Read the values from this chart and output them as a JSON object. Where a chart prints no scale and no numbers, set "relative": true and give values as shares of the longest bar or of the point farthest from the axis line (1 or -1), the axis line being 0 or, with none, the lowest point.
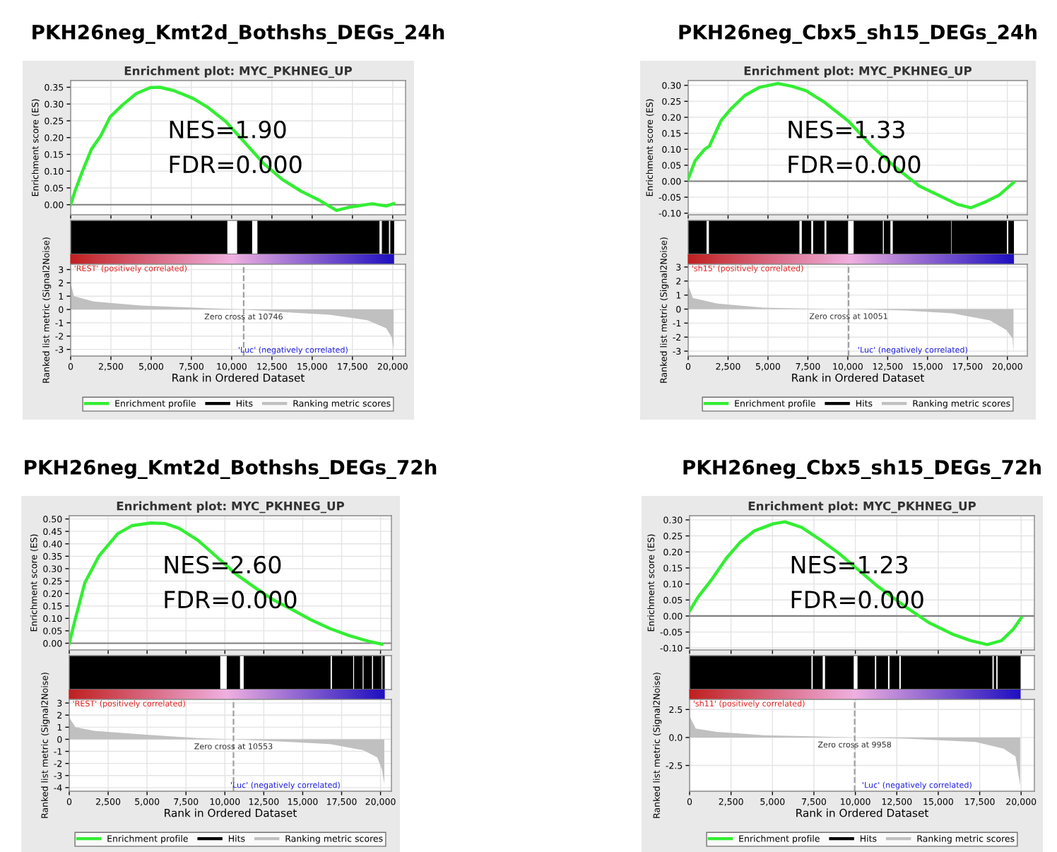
{
  "chart_data": [
    {
      "type": "line",
      "title": "PKH26neg_Kmt2d_Bothshs_DEGs_24h",
      "subtitle": "Enrichment plot: MYC_PKHNEG_UP",
      "ylabel": "Enrichment score (ES)",
      "annotations": [
        "NES=1.90",
        "FDR=0.000"
      ],
      "series": [
        {
          "name": "Enrichment profile",
          "color": "#33ee33",
          "x": [
            0,
            264,
            703,
            1288,
            1874,
            2460,
            3192,
            4070,
            4949,
            5534,
            6413,
            7584,
            8463,
            9634,
            10805,
            11977,
            13148,
            14319,
            15490,
            16515,
            17247,
            18711,
            19590,
            20059
          ],
          "values": [
            0.0,
            0.04,
            0.096,
            0.165,
            0.206,
            0.262,
            0.296,
            0.331,
            0.349,
            0.35,
            0.34,
            0.317,
            0.292,
            0.248,
            0.186,
            0.123,
            0.075,
            0.04,
            0.012,
            -0.017,
            -0.008,
            0.003,
            -0.004,
            0.003
          ]
        }
      ],
      "ref_lines": [
        {
          "axis": "y",
          "value": 0,
          "color": "#808080"
        }
      ],
      "xlim": [
        0,
        20800
      ],
      "xticks": [
        0,
        2500,
        5000,
        7500,
        10000,
        12500,
        15000,
        17500,
        20000
      ],
      "ylim": [
        -0.03,
        0.37
      ],
      "yticks": [
        {
          "value": 0,
          "label": "0.00"
        },
        {
          "value": 0.05,
          "label": "0.05"
        },
        {
          "value": 0.1,
          "label": "0.10"
        },
        {
          "value": 0.15,
          "label": "0.15"
        },
        {
          "value": 0.2,
          "label": "0.20"
        },
        {
          "value": 0.25,
          "label": "0.25"
        },
        {
          "value": 0.3,
          "label": "0.30"
        },
        {
          "value": 0.35,
          "label": "0.35"
        }
      ],
      "grid": true,
      "tick_labels": "y"
    },
    {
      "type": "step",
      "relative": true,
      "tick_labels": false,
      "xlim": [
        0,
        20800
      ],
      "series": [
        {
          "name": "Hits",
          "color": "#000000",
          "x": [
            0,
            9700,
            10370,
            11240,
            11630,
            14290,
            14350,
            19150,
            19360,
            19740,
            19880,
            20060
          ],
          "values": [
            1,
            0,
            1,
            0,
            1,
            0,
            1,
            0,
            1,
            0,
            1,
            0
          ]
        }
      ]
    },
    {
      "type": "area",
      "xlabel": "Rank in Ordered Dataset",
      "ylabel": "Ranked list metric (Signal2Noise)",
      "annotations": [
        "'REST' (positively correlated)",
        "'Luc' (negatively correlated)"
      ],
      "series": [
        {
          "name": "Ranking metric scores",
          "color": "#c0c0c0",
          "x": [
            0,
            205,
            1435,
            4363,
            8463,
            10746,
            13148,
            16076,
            18418,
            19590,
            19941,
            20059
          ],
          "values": [
            2.0,
            1.0,
            0.6,
            0.3,
            0.1,
            0,
            -0.2,
            -0.4,
            -0.8,
            -1.4,
            -2.1,
            -3.0
          ]
        }
      ],
      "ref_lines": [
        {
          "axis": "x",
          "value": 10746,
          "label": "Zero cross at 10746",
          "color": "#a0a0a0",
          "line_style": "dashed"
        }
      ],
      "xlim": [
        0,
        20800
      ],
      "xticks": [
        0,
        {
          "value": 2500,
          "label": "2,500"
        },
        {
          "value": 5000,
          "label": "5,000"
        },
        {
          "value": 7500,
          "label": "7,500"
        },
        {
          "value": 10000,
          "label": "10,000"
        },
        {
          "value": 12500,
          "label": "12,500"
        },
        {
          "value": 15000,
          "label": "15,000"
        },
        {
          "value": 17500,
          "label": "17,500"
        },
        {
          "value": 20000,
          "label": "20,000"
        }
      ],
      "ylim": [
        -3.5,
        3.4
      ],
      "yticks": [
        -3,
        -2,
        -1,
        0,
        1,
        2,
        3
      ],
      "grid": true,
      "legend": "bottom"
    },
    {
      "type": "line",
      "title": "PKH26neg_Cbx5_sh15_DEGs_24h",
      "subtitle": "Enrichment plot: MYC_PKHNEG_UP",
      "ylabel": "Enrichment score (ES)",
      "annotations": [
        "NES=1.33",
        "FDR=0.000"
      ],
      "series": [
        {
          "name": "Enrichment profile",
          "color": "#33ee33",
          "x": [
            0,
            443,
            1034,
            1329,
            2068,
            2659,
            3545,
            4431,
            5613,
            6500,
            7386,
            8567,
            10044,
            11521,
            12999,
            14476,
            15657,
            16839,
            17725,
            18611,
            19498,
            20384
          ],
          "values": [
            0.007,
            0.065,
            0.1,
            0.11,
            0.19,
            0.225,
            0.268,
            0.293,
            0.306,
            0.297,
            0.283,
            0.246,
            0.188,
            0.109,
            0.043,
            -0.015,
            -0.043,
            -0.072,
            -0.083,
            -0.065,
            -0.043,
            -0.004
          ]
        }
      ],
      "ref_lines": [
        {
          "axis": "y",
          "value": 0,
          "color": "#808080"
        }
      ],
      "xlim": [
        0,
        21250
      ],
      "xticks": [
        0,
        2500,
        5000,
        7500,
        10000,
        12500,
        15000,
        17500,
        20000
      ],
      "ylim": [
        -0.105,
        0.315
      ],
      "yticks": [
        {
          "value": -0.1,
          "label": "-0.10"
        },
        {
          "value": -0.05,
          "label": "-0.05"
        },
        {
          "value": 0,
          "label": "0.00"
        },
        {
          "value": 0.05,
          "label": "0.05"
        },
        {
          "value": 0.1,
          "label": "0.10"
        },
        {
          "value": 0.15,
          "label": "0.15"
        },
        {
          "value": 0.2,
          "label": "0.20"
        },
        {
          "value": 0.25,
          "label": "0.25"
        },
        {
          "value": 0.3,
          "label": "0.30"
        }
      ],
      "grid": true,
      "tick_labels": "y"
    },
    {
      "type": "step",
      "relative": true,
      "tick_labels": false,
      "xlim": [
        0,
        21250
      ],
      "series": [
        {
          "name": "Hits",
          "color": "#000000",
          "x": [
            0,
            1120,
            1330,
            6940,
            7150,
            7680,
            7860,
            8510,
            8690,
            9990,
            10400,
            12170,
            12290,
            12640,
            12850,
            16450,
            16540,
            19940,
            20090,
            20380
          ],
          "values": [
            1,
            0,
            1,
            0,
            1,
            0,
            1,
            0,
            1,
            0,
            1,
            0,
            1,
            0,
            1,
            0,
            1,
            0,
            1,
            0
          ]
        }
      ]
    },
    {
      "type": "area",
      "xlabel": "Rank in Ordered Dataset",
      "ylabel": "Ranked list metric (Signal2Noise)",
      "annotations": [
        "'sh15' (positively correlated)",
        "'Luc' (negatively correlated)"
      ],
      "series": [
        {
          "name": "Ranking metric scores",
          "color": "#c0c0c0",
          "x": [
            0,
            295,
            1772,
            4727,
            8863,
            10051,
            13589,
            16544,
            18907,
            19941,
            20325,
            20384
          ],
          "values": [
            1.7,
            0.8,
            0.4,
            0.1,
            0.0,
            0,
            -0.1,
            -0.3,
            -0.8,
            -1.5,
            -2.1,
            -3.1
          ]
        }
      ],
      "ref_lines": [
        {
          "axis": "x",
          "value": 10051,
          "label": "Zero cross at 10051",
          "color": "#a0a0a0",
          "line_style": "dashed"
        }
      ],
      "xlim": [
        0,
        21250
      ],
      "xticks": [
        0,
        {
          "value": 2500,
          "label": "2,500"
        },
        {
          "value": 5000,
          "label": "5,000"
        },
        {
          "value": 7500,
          "label": "7,500"
        },
        {
          "value": 10000,
          "label": "10,000"
        },
        {
          "value": 12500,
          "label": "12,500"
        },
        {
          "value": 15000,
          "label": "15,000"
        },
        {
          "value": 17500,
          "label": "17,500"
        },
        {
          "value": 20000,
          "label": "20,000"
        }
      ],
      "ylim": [
        -3.35,
        3.2
      ],
      "yticks": [
        -3,
        -2,
        -1,
        0,
        1,
        2,
        3
      ],
      "grid": true,
      "legend": "bottom"
    },
    {
      "type": "line",
      "title": "PKH26neg_Kmt2d_Bothshs_DEGs_72h",
      "subtitle": "Enrichment plot: MYC_PKHNEG_UP",
      "ylabel": "Enrichment score (ES)",
      "annotations": [
        "NES=2.60",
        "FDR=0.000"
      ],
      "series": [
        {
          "name": "Enrichment profile",
          "color": "#33ee33",
          "x": [
            0,
            394,
            1000,
            1909,
            3121,
            4030,
            5242,
            6152,
            7061,
            8273,
            9485,
            10697,
            11909,
            13121,
            14333,
            15545,
            16758,
            17970,
            19182,
            20091
          ],
          "values": [
            0.0,
            0.099,
            0.243,
            0.351,
            0.441,
            0.473,
            0.484,
            0.482,
            0.462,
            0.414,
            0.347,
            0.279,
            0.225,
            0.174,
            0.135,
            0.094,
            0.059,
            0.031,
            0.009,
            -0.004
          ]
        }
      ],
      "ref_lines": [
        {
          "axis": "y",
          "value": 0,
          "color": "#808080"
        }
      ],
      "xlim": [
        0,
        20700
      ],
      "xticks": [
        0,
        2500,
        5000,
        7500,
        10000,
        12500,
        15000,
        17500,
        20000
      ],
      "ylim": [
        -0.027,
        0.513
      ],
      "yticks": [
        {
          "value": 0,
          "label": "0.00"
        },
        {
          "value": 0.05,
          "label": "0.05"
        },
        {
          "value": 0.1,
          "label": "0.10"
        },
        {
          "value": 0.15,
          "label": "0.15"
        },
        {
          "value": 0.2,
          "label": "0.20"
        },
        {
          "value": 0.25,
          "label": "0.25"
        },
        {
          "value": 0.3,
          "label": "0.30"
        },
        {
          "value": 0.35,
          "label": "0.35"
        },
        {
          "value": 0.4,
          "label": "0.40"
        },
        {
          "value": 0.45,
          "label": "0.45"
        },
        {
          "value": 0.5,
          "label": "0.50"
        }
      ],
      "grid": true,
      "tick_labels": "y"
    },
    {
      "type": "step",
      "relative": true,
      "tick_labels": false,
      "xlim": [
        0,
        20700
      ],
      "series": [
        {
          "name": "Hits",
          "color": "#000000",
          "x": [
            0,
            9670,
            10150,
            10940,
            11240,
            16760,
            16910,
            18210,
            18330,
            18820,
            18940,
            19420,
            19550,
            20030,
            20150,
            20240
          ],
          "values": [
            1,
            0,
            1,
            0,
            1,
            0,
            1,
            0,
            1,
            0,
            1,
            0,
            1,
            0,
            1,
            0
          ]
        }
      ]
    },
    {
      "type": "area",
      "xlabel": "Rank in Ordered Dataset",
      "ylabel": "Ranked list metric (Signal2Noise)",
      "annotations": [
        "'REST' (positively correlated)",
        "'Luc' (negatively correlated)"
      ],
      "series": [
        {
          "name": "Ranking metric scores",
          "color": "#c0c0c0",
          "x": [
            0,
            394,
            1606,
            4636,
            8273,
            10553,
            13727,
            16758,
            18879,
            19788,
            20091,
            20242
          ],
          "values": [
            1.8,
            1.0,
            0.7,
            0.4,
            0.1,
            0,
            -0.2,
            -0.4,
            -0.9,
            -1.5,
            -2.5,
            -3.7
          ]
        }
      ],
      "ref_lines": [
        {
          "axis": "x",
          "value": 10553,
          "label": "Zero cross at 10553",
          "color": "#a0a0a0",
          "line_style": "dashed"
        }
      ],
      "xlim": [
        0,
        20700
      ],
      "xticks": [
        0,
        {
          "value": 2500,
          "label": "2,500"
        },
        {
          "value": 5000,
          "label": "5,000"
        },
        {
          "value": 7500,
          "label": "7,500"
        },
        {
          "value": 10000,
          "label": "10,000"
        },
        {
          "value": 12500,
          "label": "12,500"
        },
        {
          "value": 15000,
          "label": "15,000"
        },
        {
          "value": 17500,
          "label": "17,500"
        },
        {
          "value": 20000,
          "label": "20,000"
        }
      ],
      "ylim": [
        -4.3,
        3.3
      ],
      "yticks": [
        -4,
        -3,
        -2,
        -1,
        0,
        1,
        2,
        3
      ],
      "grid": true,
      "legend": "bottom"
    },
    {
      "type": "line",
      "title": "PKH26neg_Cbx5_sh15_DEGs_72h",
      "subtitle": "Enrichment plot: MYC_PKHNEG_UP",
      "ylabel": "Enrichment score (ES)",
      "annotations": [
        "NES=1.23",
        "FDR=0.000"
      ],
      "series": [
        {
          "name": "Enrichment profile",
          "color": "#33ee33",
          "x": [
            0,
            511,
            1362,
            2213,
            3064,
            3915,
            5050,
            5759,
            6752,
            7887,
            9021,
            10156,
            11291,
            12993,
            14411,
            15830,
            16965,
            17957,
            18809,
            19518,
            20000
          ],
          "values": [
            0.016,
            0.059,
            0.116,
            0.18,
            0.231,
            0.266,
            0.288,
            0.294,
            0.277,
            0.238,
            0.195,
            0.145,
            0.095,
            0.03,
            -0.02,
            -0.056,
            -0.077,
            -0.089,
            -0.077,
            -0.042,
            -0.006
          ]
        }
      ],
      "ref_lines": [
        {
          "axis": "y",
          "value": 0,
          "color": "#808080"
        }
      ],
      "xlim": [
        0,
        20800
      ],
      "xticks": [
        0,
        2500,
        5000,
        7500,
        10000,
        12500,
        15000,
        17500,
        20000
      ],
      "ylim": [
        -0.106,
        0.313
      ],
      "yticks": [
        {
          "value": -0.1,
          "label": "-0.10"
        },
        {
          "value": -0.05,
          "label": "-0.05"
        },
        {
          "value": 0,
          "label": "0.00"
        },
        {
          "value": 0.05,
          "label": "0.05"
        },
        {
          "value": 0.1,
          "label": "0.10"
        },
        {
          "value": 0.15,
          "label": "0.15"
        },
        {
          "value": 0.2,
          "label": "0.20"
        },
        {
          "value": 0.25,
          "label": "0.25"
        },
        {
          "value": 0.3,
          "label": "0.30"
        }
      ],
      "grid": true,
      "tick_labels": "y"
    },
    {
      "type": "step",
      "relative": true,
      "tick_labels": false,
      "xlim": [
        0,
        20800
      ],
      "series": [
        {
          "name": "Hits",
          "color": "#000000",
          "x": [
            0,
            7320,
            7460,
            8000,
            8200,
            9870,
            10160,
            11150,
            11290,
            11940,
            12090,
            12620,
            12770,
            18240,
            18380,
            18470,
            18610,
            19940
          ],
          "values": [
            1,
            0,
            1,
            0,
            1,
            0,
            1,
            0,
            1,
            0,
            1,
            0,
            1,
            0,
            1,
            0,
            1,
            0
          ]
        }
      ]
    },
    {
      "type": "area",
      "xlabel": "Rank in Ordered Dataset",
      "ylabel": "Ranked list metric (Signal2Noise)",
      "annotations": [
        "'sh11' (positively correlated)",
        "'Luc' (negatively correlated)"
      ],
      "series": [
        {
          "name": "Ranking metric scores",
          "color": "#c0c0c0",
          "x": [
            0,
            369,
            1645,
            4482,
            7319,
            9958,
            12993,
            17248,
            18950,
            19660,
            19943
          ],
          "values": [
            1.9,
            0.8,
            0.5,
            0.2,
            0.1,
            0,
            -0.1,
            -0.4,
            -1.0,
            -1.7,
            -4.3
          ]
        }
      ],
      "ref_lines": [
        {
          "axis": "x",
          "value": 9958,
          "label": "Zero cross at 9958",
          "color": "#a0a0a0",
          "line_style": "dashed"
        }
      ],
      "xlim": [
        0,
        20800
      ],
      "xticks": [
        0,
        {
          "value": 2500,
          "label": "2,500"
        },
        {
          "value": 5000,
          "label": "5,000"
        },
        {
          "value": 7500,
          "label": "7,500"
        },
        {
          "value": 10000,
          "label": "10,000"
        },
        {
          "value": 12500,
          "label": "12,500"
        },
        {
          "value": 15000,
          "label": "15,000"
        },
        {
          "value": 17500,
          "label": "17,500"
        },
        {
          "value": 20000,
          "label": "20,000"
        }
      ],
      "ylim": [
        -4.8,
        3.4
      ],
      "yticks": [
        {
          "value": -2.5,
          "label": "-2.5"
        },
        {
          "value": 0,
          "label": "0.0"
        },
        {
          "value": 2.5,
          "label": "2.5"
        }
      ],
      "grid": true,
      "legend": "bottom"
    }
  ]
}
